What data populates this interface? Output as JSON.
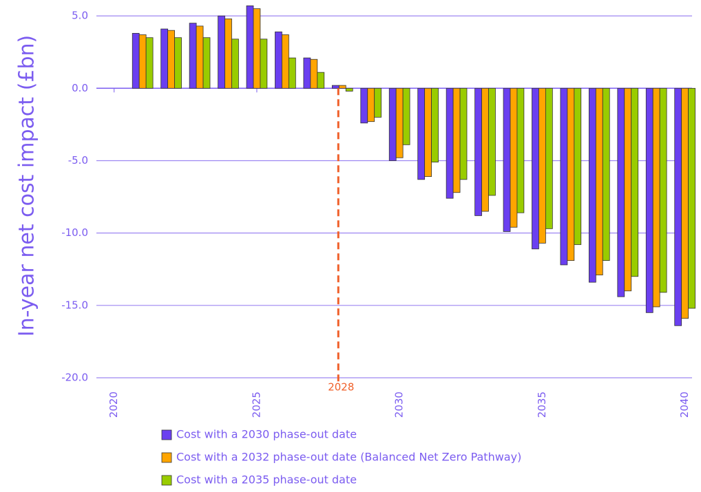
{
  "chart_data": {
    "type": "bar",
    "ylabel": "In-year net cost impact (£bn)",
    "x": [
      2021,
      2022,
      2023,
      2024,
      2025,
      2026,
      2027,
      2028,
      2029,
      2030,
      2031,
      2032,
      2033,
      2034,
      2035,
      2036,
      2037,
      2038,
      2039,
      2040
    ],
    "series": [
      {
        "name": "Cost with a 2030 phase-out date",
        "color": "#6a3ff0",
        "values": [
          3.8,
          4.1,
          4.5,
          5.0,
          5.7,
          3.9,
          2.1,
          0.2,
          -2.4,
          -5.0,
          -6.3,
          -7.6,
          -8.8,
          -9.9,
          -11.1,
          -12.2,
          -13.4,
          -14.4,
          -15.5,
          -16.4
        ]
      },
      {
        "name": "Cost with a 2032 phase-out date (Balanced Net Zero Pathway)",
        "color": "#ffa500",
        "values": [
          3.7,
          4.0,
          4.3,
          4.8,
          5.5,
          3.7,
          2.0,
          0.2,
          -2.3,
          -4.8,
          -6.1,
          -7.2,
          -8.5,
          -9.6,
          -10.7,
          -11.9,
          -12.9,
          -14.0,
          -15.1,
          -15.9
        ]
      },
      {
        "name": "Cost with a 2035 phase-out date",
        "color": "#99cc00",
        "values": [
          3.5,
          3.5,
          3.5,
          3.4,
          3.4,
          2.1,
          1.1,
          -0.2,
          -2.0,
          -3.9,
          -5.1,
          -6.3,
          -7.4,
          -8.6,
          -9.7,
          -10.8,
          -11.9,
          -13.0,
          -14.1,
          -15.2
        ]
      }
    ],
    "xlim": [
      2019.5,
      2040.25
    ],
    "xticks": [
      2020,
      2025,
      2030,
      2035,
      2040
    ],
    "ylim": [
      -20,
      6.1
    ],
    "yticks": [
      {
        "value": 5,
        "label": "5.0"
      },
      {
        "value": 0,
        "label": "0.0"
      },
      {
        "value": -5,
        "label": "-5.0"
      },
      {
        "value": -10,
        "label": "-10.0"
      },
      {
        "value": -15,
        "label": "-15.0"
      },
      {
        "value": -20,
        "label": "-20.0"
      }
    ],
    "grid": true,
    "annotation": {
      "x": 2028,
      "label": "2028",
      "color": "#f0602a"
    }
  }
}
